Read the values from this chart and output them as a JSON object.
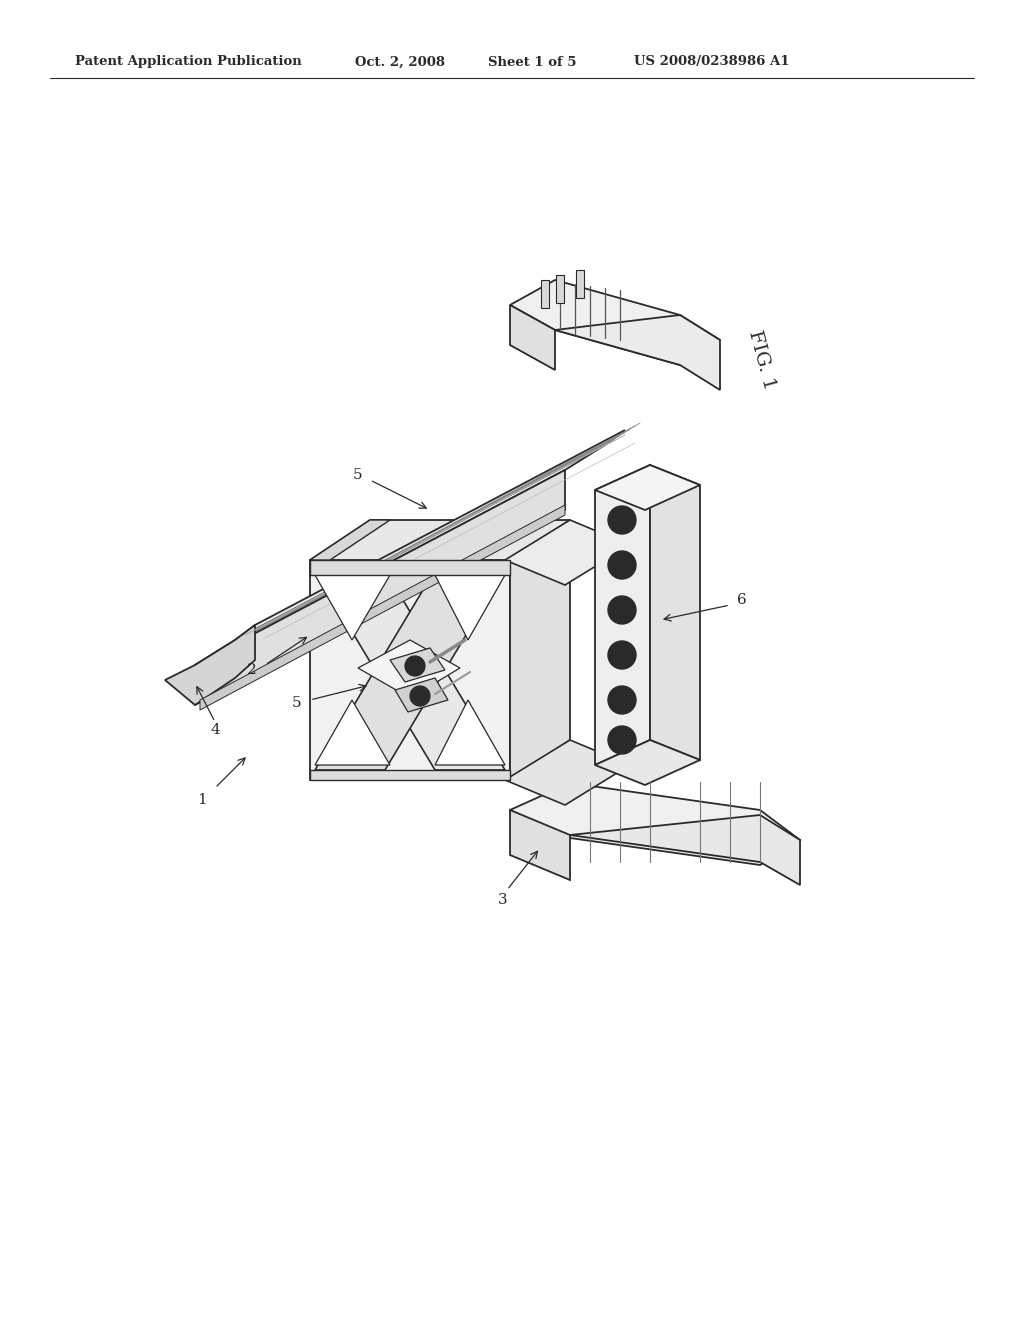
{
  "background_color": "#ffffff",
  "line_color": "#2a2a2a",
  "header_left": "Patent Application Publication",
  "header_date": "Oct. 2, 2008",
  "header_sheet": "Sheet 1 of 5",
  "header_patent": "US 2008/0238986 A1",
  "fig_label": "FIG. 1",
  "page_width": 10.24,
  "page_height": 13.2,
  "dpi": 100
}
